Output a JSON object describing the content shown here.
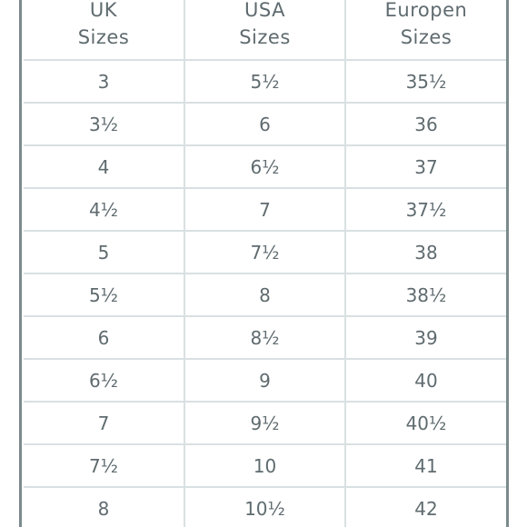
{
  "table": {
    "headers": [
      {
        "line1": "UK",
        "line2": "Sizes"
      },
      {
        "line1": "USA",
        "line2": "Sizes"
      },
      {
        "line1": "Europen",
        "line2": "Sizes"
      }
    ],
    "rows": [
      [
        "3",
        "5½",
        "35½"
      ],
      [
        "3½",
        "6",
        "36"
      ],
      [
        "4",
        "6½",
        "37"
      ],
      [
        "4½",
        "7",
        "37½"
      ],
      [
        "5",
        "7½",
        "38"
      ],
      [
        "5½",
        "8",
        "38½"
      ],
      [
        "6",
        "8½",
        "39"
      ],
      [
        "6½",
        "9",
        "40"
      ],
      [
        "7",
        "9½",
        "40½"
      ],
      [
        "7½",
        "10",
        "41"
      ],
      [
        "8",
        "10½",
        "42"
      ]
    ]
  }
}
